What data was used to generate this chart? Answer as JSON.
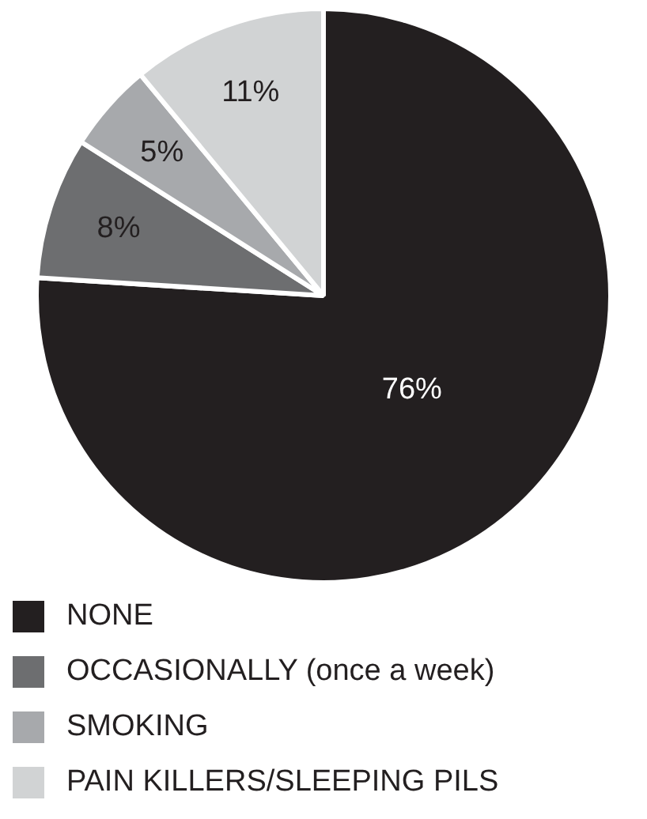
{
  "chart_data": {
    "type": "pie",
    "categories": [
      "NONE",
      "OCCASIONALLY (once a week)",
      "SMOKING",
      "PAIN KILLERS/SLEEPING PILS"
    ],
    "values": [
      76,
      8,
      5,
      11
    ],
    "colors": [
      "#231f20",
      "#6d6e70",
      "#a7a9ac",
      "#d1d3d4"
    ],
    "value_labels": [
      "76%",
      "8%",
      "5%",
      "11%"
    ],
    "legend": "bottom"
  }
}
